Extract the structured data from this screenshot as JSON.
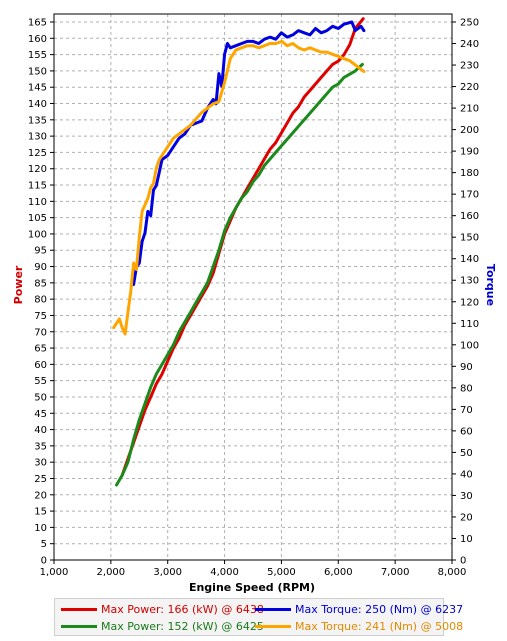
{
  "colors": {
    "red": "#e00000",
    "green": "#1a8a1a",
    "blue": "#0000e0",
    "orange": "#ffa500",
    "grid": "#b0b0b0",
    "axis": "#000000"
  },
  "legend": [
    {
      "text": "Max Power: 166 (kW) @ 6438",
      "color": "#e00000"
    },
    {
      "text": "Max Torque: 250 (Nm) @ 6237",
      "color": "#0000e0"
    },
    {
      "text": "Max Power: 152 (kW) @ 6425",
      "color": "#1a8a1a"
    },
    {
      "text": "Max Torque: 241 (Nm) @ 5008",
      "color": "#ffa500"
    }
  ],
  "chart_data": {
    "type": "line",
    "xlabel": "Engine Speed (RPM)",
    "ylabel_left": "Power",
    "ylabel_right": "Torque",
    "xlim": [
      1000,
      8000
    ],
    "ylim_left": [
      0,
      165
    ],
    "ylim_right": [
      0,
      250
    ],
    "x_ticks": [
      "1,000",
      "2,000",
      "3,000",
      "4,000",
      "5,000",
      "6,000",
      "7,000",
      "8,000"
    ],
    "x_tick_values": [
      1000,
      2000,
      3000,
      4000,
      5000,
      6000,
      7000,
      8000
    ],
    "y_left_ticks": [
      0,
      5,
      10,
      15,
      20,
      25,
      30,
      35,
      40,
      45,
      50,
      55,
      60,
      65,
      70,
      75,
      80,
      85,
      90,
      95,
      100,
      105,
      110,
      115,
      120,
      125,
      130,
      135,
      140,
      145,
      150,
      155,
      160,
      165
    ],
    "y_right_ticks": [
      0,
      10,
      20,
      30,
      40,
      50,
      60,
      70,
      80,
      90,
      100,
      110,
      120,
      130,
      140,
      150,
      160,
      170,
      180,
      190,
      200,
      210,
      220,
      230,
      240,
      250
    ],
    "grid": true,
    "series": [
      {
        "axis": "left",
        "color": "#e00000",
        "x": [
          2200,
          2300,
          2400,
          2500,
          2600,
          2700,
          2800,
          2900,
          3000,
          3100,
          3200,
          3300,
          3400,
          3500,
          3600,
          3700,
          3800,
          3900,
          4000,
          4100,
          4200,
          4300,
          4400,
          4500,
          4600,
          4700,
          4800,
          4900,
          5000,
          5100,
          5200,
          5300,
          5400,
          5500,
          5600,
          5700,
          5800,
          5900,
          6000,
          6100,
          6200,
          6300,
          6438
        ],
        "y": [
          26,
          31,
          36,
          41,
          46,
          50,
          54,
          57,
          61,
          65,
          68,
          72,
          75,
          78,
          81,
          84,
          88,
          94,
          100,
          104,
          108,
          111,
          114,
          117,
          120,
          123,
          126,
          128,
          131,
          134,
          137,
          139,
          142,
          144,
          146,
          148,
          150,
          152,
          153,
          155,
          158,
          163,
          166
        ]
      },
      {
        "axis": "left",
        "color": "#1a8a1a",
        "x": [
          2100,
          2200,
          2300,
          2400,
          2500,
          2600,
          2700,
          2800,
          2900,
          3000,
          3100,
          3200,
          3300,
          3400,
          3500,
          3600,
          3700,
          3800,
          3900,
          4000,
          4100,
          4200,
          4300,
          4400,
          4500,
          4600,
          4700,
          4800,
          4900,
          5000,
          5100,
          5200,
          5300,
          5400,
          5500,
          5600,
          5700,
          5800,
          5900,
          6000,
          6100,
          6200,
          6300,
          6425
        ],
        "y": [
          23,
          26,
          30,
          37,
          43,
          48,
          53,
          57,
          60,
          63,
          66,
          70,
          73,
          76,
          79,
          82,
          85,
          90,
          95,
          101,
          105,
          108,
          111,
          113,
          116,
          118,
          121,
          123,
          125,
          127,
          129,
          131,
          133,
          135,
          137,
          139,
          141,
          143,
          145,
          146,
          148,
          149,
          150,
          152
        ]
      },
      {
        "axis": "right",
        "color": "#0000e0",
        "x": [
          2400,
          2450,
          2500,
          2550,
          2600,
          2650,
          2700,
          2750,
          2800,
          2850,
          2900,
          3000,
          3100,
          3200,
          3300,
          3400,
          3500,
          3600,
          3700,
          3800,
          3850,
          3900,
          3950,
          4000,
          4050,
          4100,
          4200,
          4300,
          4400,
          4500,
          4600,
          4700,
          4800,
          4900,
          5000,
          5100,
          5200,
          5300,
          5400,
          5500,
          5600,
          5700,
          5800,
          5900,
          6000,
          6100,
          6237,
          6300,
          6400,
          6450
        ],
        "y": [
          128,
          136,
          138,
          148,
          152,
          162,
          160,
          172,
          174,
          180,
          186,
          188,
          192,
          196,
          198,
          202,
          203,
          204,
          210,
          214,
          212,
          226,
          220,
          235,
          240,
          238,
          239,
          240,
          241,
          241,
          240,
          242,
          243,
          242,
          245,
          243,
          244,
          246,
          245,
          244,
          247,
          245,
          246,
          248,
          247,
          249,
          250,
          246,
          248,
          246
        ]
      },
      {
        "axis": "right",
        "color": "#ffa500",
        "x": [
          2050,
          2100,
          2150,
          2200,
          2250,
          2300,
          2350,
          2400,
          2450,
          2500,
          2550,
          2600,
          2650,
          2700,
          2750,
          2800,
          2850,
          2900,
          3000,
          3100,
          3200,
          3300,
          3400,
          3500,
          3600,
          3700,
          3800,
          3900,
          4000,
          4100,
          4200,
          4300,
          4400,
          4500,
          4600,
          4700,
          4800,
          4900,
          5008,
          5100,
          5200,
          5300,
          5400,
          5500,
          5600,
          5700,
          5800,
          5900,
          6000,
          6100,
          6200,
          6300,
          6400,
          6450
        ],
        "y": [
          108,
          110,
          112,
          108,
          105,
          115,
          125,
          138,
          135,
          150,
          162,
          165,
          168,
          173,
          175,
          182,
          186,
          188,
          192,
          196,
          198,
          200,
          202,
          205,
          208,
          210,
          212,
          213,
          222,
          233,
          237,
          238,
          239,
          239,
          238,
          239,
          240,
          240,
          241,
          239,
          240,
          238,
          237,
          238,
          237,
          236,
          236,
          235,
          234,
          233,
          232,
          230,
          228,
          227
        ]
      }
    ]
  }
}
